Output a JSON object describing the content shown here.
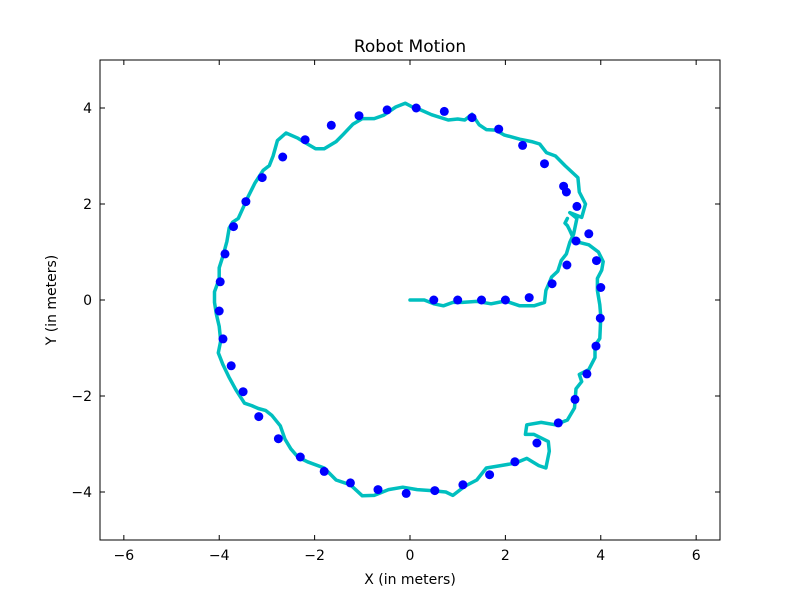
{
  "chart_data": {
    "type": "scatter",
    "title": "Robot Motion",
    "xlabel": "X (in meters)",
    "ylabel": "Y (in meters)",
    "xlim": [
      -6.5,
      6.5
    ],
    "ylim": [
      -5,
      5
    ],
    "xticks": [
      -6,
      -4,
      -2,
      0,
      2,
      4,
      6
    ],
    "yticks": [
      -4,
      -2,
      0,
      2,
      4
    ],
    "xtick_labels": [
      "−6",
      "−4",
      "−2",
      "0",
      "2",
      "4",
      "6"
    ],
    "ytick_labels": [
      "−4",
      "−2",
      "0",
      "2",
      "4"
    ],
    "grid": false,
    "colors": {
      "points": "#0000ff",
      "path": "#00bfbf"
    },
    "series": [
      {
        "type": "scatter",
        "points": [
          [
            0.5,
            0.0
          ],
          [
            1.0,
            0.0
          ],
          [
            1.5,
            0.0
          ],
          [
            2.0,
            0.0
          ],
          [
            2.5,
            0.05
          ],
          [
            2.98,
            0.34
          ],
          [
            3.29,
            0.73
          ],
          [
            3.48,
            1.23
          ],
          [
            3.75,
            1.38
          ],
          [
            3.91,
            0.82
          ],
          [
            4.0,
            0.26
          ],
          [
            3.99,
            -0.38
          ],
          [
            3.9,
            -0.96
          ],
          [
            3.71,
            -1.54
          ],
          [
            3.46,
            -2.07
          ],
          [
            3.11,
            -2.56
          ],
          [
            2.66,
            -2.98
          ],
          [
            2.2,
            -3.37
          ],
          [
            1.67,
            -3.64
          ],
          [
            1.11,
            -3.85
          ],
          [
            0.52,
            -3.97
          ],
          [
            -0.08,
            -4.03
          ],
          [
            -0.67,
            -3.95
          ],
          [
            -1.25,
            -3.81
          ],
          [
            -1.8,
            -3.57
          ],
          [
            -2.3,
            -3.27
          ],
          [
            -2.76,
            -2.89
          ],
          [
            -3.17,
            -2.43
          ],
          [
            -3.5,
            -1.91
          ],
          [
            -3.75,
            -1.37
          ],
          [
            -3.92,
            -0.81
          ],
          [
            -4.0,
            -0.23
          ],
          [
            -3.98,
            0.38
          ],
          [
            -3.88,
            0.96
          ],
          [
            -3.7,
            1.53
          ],
          [
            -3.44,
            2.05
          ],
          [
            -3.1,
            2.55
          ],
          [
            -2.67,
            2.98
          ],
          [
            -2.2,
            3.34
          ],
          [
            -1.65,
            3.64
          ],
          [
            -1.07,
            3.84
          ],
          [
            -0.48,
            3.96
          ],
          [
            0.13,
            4.0
          ],
          [
            0.72,
            3.93
          ],
          [
            1.3,
            3.8
          ],
          [
            1.86,
            3.56
          ],
          [
            2.36,
            3.22
          ],
          [
            2.82,
            2.84
          ],
          [
            3.22,
            2.37
          ],
          [
            3.28,
            2.25
          ],
          [
            3.5,
            1.95
          ]
        ]
      },
      {
        "type": "line",
        "points": [
          [
            0.0,
            0.0
          ],
          [
            0.3,
            0.0
          ],
          [
            0.5,
            -0.08
          ],
          [
            0.7,
            -0.12
          ],
          [
            0.9,
            -0.05
          ],
          [
            1.1,
            -0.05
          ],
          [
            1.4,
            -0.03
          ],
          [
            1.7,
            -0.08
          ],
          [
            2.0,
            -0.02
          ],
          [
            2.3,
            -0.12
          ],
          [
            2.6,
            -0.12
          ],
          [
            2.82,
            -0.05
          ],
          [
            2.85,
            0.2
          ],
          [
            2.93,
            0.38
          ],
          [
            2.97,
            0.48
          ],
          [
            3.1,
            0.6
          ],
          [
            3.17,
            0.82
          ],
          [
            3.28,
            0.96
          ],
          [
            3.35,
            1.2
          ],
          [
            3.43,
            1.37
          ],
          [
            3.5,
            1.7
          ],
          [
            3.35,
            1.82
          ],
          [
            3.6,
            1.72
          ],
          [
            3.68,
            2.0
          ],
          [
            3.55,
            2.25
          ],
          [
            3.52,
            2.55
          ],
          [
            3.25,
            2.8
          ],
          [
            3.05,
            3.0
          ],
          [
            2.86,
            3.07
          ],
          [
            2.72,
            3.25
          ],
          [
            2.55,
            3.3
          ],
          [
            2.3,
            3.35
          ],
          [
            1.97,
            3.44
          ],
          [
            1.8,
            3.54
          ],
          [
            1.6,
            3.55
          ],
          [
            1.45,
            3.65
          ],
          [
            1.3,
            3.87
          ],
          [
            1.15,
            3.75
          ],
          [
            1.0,
            3.77
          ],
          [
            0.8,
            3.75
          ],
          [
            0.45,
            3.86
          ],
          [
            0.2,
            3.97
          ],
          [
            0.05,
            4.02
          ],
          [
            -0.1,
            4.1
          ],
          [
            -0.3,
            4.02
          ],
          [
            -0.55,
            3.85
          ],
          [
            -0.75,
            3.78
          ],
          [
            -1.0,
            3.78
          ],
          [
            -1.2,
            3.66
          ],
          [
            -1.4,
            3.45
          ],
          [
            -1.55,
            3.3
          ],
          [
            -1.8,
            3.15
          ],
          [
            -1.98,
            3.15
          ],
          [
            -2.2,
            3.28
          ],
          [
            -2.35,
            3.37
          ],
          [
            -2.6,
            3.48
          ],
          [
            -2.78,
            3.32
          ],
          [
            -2.87,
            3.0
          ],
          [
            -2.95,
            2.8
          ],
          [
            -3.08,
            2.7
          ],
          [
            -3.25,
            2.44
          ],
          [
            -3.4,
            2.14
          ],
          [
            -3.5,
            1.92
          ],
          [
            -3.6,
            1.7
          ],
          [
            -3.72,
            1.62
          ],
          [
            -3.79,
            1.5
          ],
          [
            -3.84,
            1.22
          ],
          [
            -3.92,
            0.92
          ],
          [
            -4.0,
            0.67
          ],
          [
            -4.0,
            0.44
          ],
          [
            -4.1,
            0.17
          ],
          [
            -4.1,
            -0.05
          ],
          [
            -4.06,
            -0.3
          ],
          [
            -4.0,
            -0.55
          ],
          [
            -3.97,
            -0.85
          ],
          [
            -4.02,
            -1.1
          ],
          [
            -3.92,
            -1.35
          ],
          [
            -3.8,
            -1.6
          ],
          [
            -3.65,
            -1.87
          ],
          [
            -3.47,
            -2.15
          ],
          [
            -3.32,
            -2.2
          ],
          [
            -3.18,
            -2.26
          ],
          [
            -3.03,
            -2.3
          ],
          [
            -2.9,
            -2.4
          ],
          [
            -2.72,
            -2.62
          ],
          [
            -2.62,
            -2.9
          ],
          [
            -2.5,
            -3.1
          ],
          [
            -2.35,
            -3.27
          ],
          [
            -2.15,
            -3.37
          ],
          [
            -1.8,
            -3.5
          ],
          [
            -1.55,
            -3.75
          ],
          [
            -1.25,
            -3.85
          ],
          [
            -1.0,
            -4.08
          ],
          [
            -0.75,
            -4.07
          ],
          [
            -0.45,
            -3.95
          ],
          [
            -0.15,
            -3.9
          ],
          [
            0.15,
            -3.95
          ],
          [
            0.45,
            -3.97
          ],
          [
            0.75,
            -4.0
          ],
          [
            0.9,
            -4.07
          ],
          [
            1.15,
            -3.88
          ],
          [
            1.4,
            -3.75
          ],
          [
            1.6,
            -3.5
          ],
          [
            1.9,
            -3.45
          ],
          [
            2.2,
            -3.4
          ],
          [
            2.45,
            -3.3
          ],
          [
            2.7,
            -3.45
          ],
          [
            2.85,
            -3.5
          ],
          [
            2.92,
            -3.15
          ],
          [
            2.9,
            -2.95
          ],
          [
            2.7,
            -2.85
          ],
          [
            2.6,
            -2.8
          ],
          [
            2.42,
            -2.8
          ],
          [
            2.45,
            -2.6
          ],
          [
            2.75,
            -2.55
          ],
          [
            3.05,
            -2.6
          ],
          [
            3.3,
            -2.5
          ],
          [
            3.45,
            -2.25
          ],
          [
            3.48,
            -1.85
          ],
          [
            3.6,
            -1.7
          ],
          [
            3.55,
            -1.55
          ],
          [
            3.75,
            -1.45
          ],
          [
            3.88,
            -1.2
          ],
          [
            3.88,
            -0.95
          ],
          [
            3.98,
            -0.8
          ],
          [
            4.0,
            -0.35
          ],
          [
            3.98,
            -0.1
          ],
          [
            3.93,
            0.2
          ],
          [
            3.93,
            0.45
          ],
          [
            4.02,
            0.62
          ],
          [
            4.05,
            0.8
          ],
          [
            3.95,
            1.0
          ],
          [
            3.75,
            1.15
          ],
          [
            3.55,
            1.2
          ],
          [
            3.42,
            1.3
          ],
          [
            3.35,
            1.45
          ],
          [
            3.3,
            1.55
          ],
          [
            3.25,
            1.6
          ],
          [
            3.3,
            1.7
          ]
        ]
      }
    ]
  }
}
